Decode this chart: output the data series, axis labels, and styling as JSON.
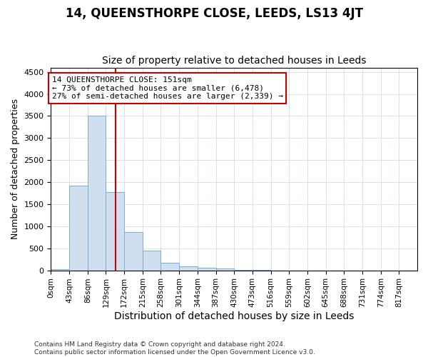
{
  "title": "14, QUEENSTHORPE CLOSE, LEEDS, LS13 4JT",
  "subtitle": "Size of property relative to detached houses in Leeds",
  "xlabel": "Distribution of detached houses by size in Leeds",
  "ylabel": "Number of detached properties",
  "bar_color": "#cfdff0",
  "bar_edge_color": "#7bafd4",
  "vline_color": "#cc0000",
  "vline_x": 151,
  "bin_edges": [
    0,
    43,
    86,
    129,
    172,
    215,
    258,
    301,
    344,
    387,
    430,
    473,
    516,
    559,
    602,
    645,
    688,
    731,
    774,
    817,
    860
  ],
  "bar_heights": [
    30,
    1920,
    3500,
    1780,
    860,
    455,
    175,
    90,
    65,
    50,
    10,
    4,
    0,
    0,
    0,
    0,
    0,
    0,
    0,
    0
  ],
  "ylim": [
    0,
    4600
  ],
  "yticks": [
    0,
    500,
    1000,
    1500,
    2000,
    2500,
    3000,
    3500,
    4000,
    4500
  ],
  "annotation_line1": "14 QUEENSTHORPE CLOSE: 151sqm",
  "annotation_line2": "← 73% of detached houses are smaller (6,478)",
  "annotation_line3": "27% of semi-detached houses are larger (2,339) →",
  "footnote": "Contains HM Land Registry data © Crown copyright and database right 2024.\nContains public sector information licensed under the Open Government Licence v3.0.",
  "background_color": "#ffffff",
  "grid_color": "#c8d8e8",
  "title_fontsize": 12,
  "subtitle_fontsize": 10,
  "tick_label_fontsize": 7.5,
  "ylabel_fontsize": 9,
  "xlabel_fontsize": 10,
  "footnote_fontsize": 6.5
}
